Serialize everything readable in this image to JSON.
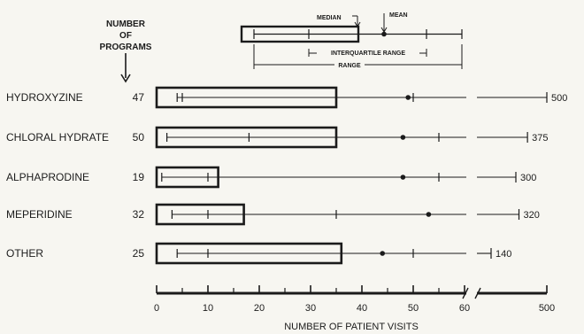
{
  "chart_data": {
    "type": "box",
    "title": "",
    "xlabel": "NUMBER OF PATIENT VISITS",
    "ylabel": "",
    "programs_header": [
      "NUMBER",
      "OF",
      "PROGRAMS"
    ],
    "x_scale": "broken linear: 0-60, axis break, 500",
    "xlim": [
      0,
      500
    ],
    "x_ticks": [
      "0",
      "10",
      "20",
      "30",
      "40",
      "50",
      "60",
      "500"
    ],
    "legend": {
      "median": "MEDIAN",
      "mean": "MEAN",
      "interquartile_range": "INTERQUARTILE RANGE",
      "range": "RANGE",
      "position": "top-center"
    },
    "categories": [
      "HYDROXYZINE",
      "CHLORAL HYDRATE",
      "ALPHAPRODINE",
      "MEPERIDINE",
      "OTHER"
    ],
    "series": [
      {
        "category": "HYDROXYZINE",
        "programs": "47",
        "min": 4,
        "q1": 5,
        "median": 35,
        "q3": 50,
        "mean": 49,
        "max": 500,
        "max_label": "500"
      },
      {
        "category": "CHLORAL HYDRATE",
        "programs": "50",
        "min": 2,
        "q1": 18,
        "median": 35,
        "q3": 55,
        "mean": 48,
        "max": 375,
        "max_label": "375"
      },
      {
        "category": "ALPHAPRODINE",
        "programs": "19",
        "min": 1,
        "q1": 10,
        "median": 12,
        "q3": 55,
        "mean": 48,
        "max": 300,
        "max_label": "300"
      },
      {
        "category": "MEPERIDINE",
        "programs": "32",
        "min": 3,
        "q1": 10,
        "median": 17,
        "q3": 35,
        "mean": 53,
        "max": 320,
        "max_label": "320"
      },
      {
        "category": "OTHER",
        "programs": "25",
        "min": 4,
        "q1": 10,
        "median": 36,
        "q3": 50,
        "mean": 44,
        "max": 140,
        "max_label": "140"
      }
    ]
  }
}
